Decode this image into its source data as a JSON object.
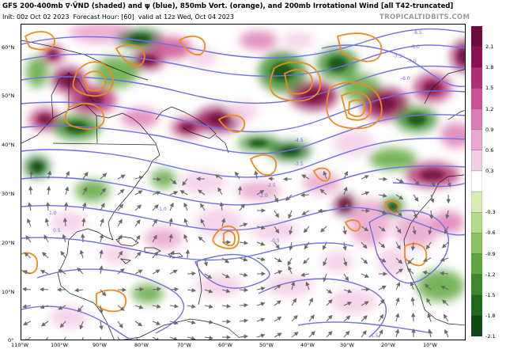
{
  "header": {
    "title": "GFS 200-400mb ∇·V̄ND (shaded) and ψ (blue), 850mb Vort. (orange), and 200mb Irrotational Wind [all T42-truncated]",
    "init": "Init: 00z Oct 02 2023",
    "forecast_hour": "Forecast Hour: [60]",
    "valid": "valid at 12z Wed, Oct 04 2023",
    "brand": "TROPICALTIDBITS.COM"
  },
  "axes": {
    "lat_labels": [
      "60°N",
      "50°N",
      "40°N",
      "30°N",
      "20°N",
      "10°N",
      "0°"
    ],
    "lon_labels": [
      "110°W",
      "100°W",
      "90°W",
      "80°W",
      "70°W",
      "60°W",
      "50°W",
      "40°W",
      "30°W",
      "20°W",
      "10°W"
    ]
  },
  "colorbar": {
    "labels": [
      "2.1",
      "1.8",
      "1.5",
      "1.2",
      "0.9",
      "0.6",
      "0.3",
      "-0.3",
      "-0.6",
      "-0.9",
      "-1.2",
      "-1.5",
      "-1.8",
      "-2.1"
    ],
    "colors": [
      "#6e0a3c",
      "#8c1050",
      "#b0306f",
      "#cc5294",
      "#dc7eb4",
      "#eaa6cd",
      "#f4cde6",
      "#ffffff",
      "#d8edb6",
      "#b6dc8a",
      "#8cc462",
      "#5fa840",
      "#3a8a2a",
      "#1e6a1c",
      "#0e4a12"
    ]
  },
  "map_colors": {
    "streamfunction": "#6f6fe6",
    "vorticity": "#f08a1c",
    "coastline": "#1a1a1a",
    "wind_arrow": "#6a6a6a"
  },
  "contour_labels": [
    "-8.5",
    "-8.0",
    "-7.0",
    "-7.5",
    "-6.0",
    "-5.0",
    "-4.5",
    "-3.5",
    "-2.5",
    "-2.0",
    "-1.0",
    "1.0",
    "-0.5",
    "0.5",
    "-1.5"
  ]
}
